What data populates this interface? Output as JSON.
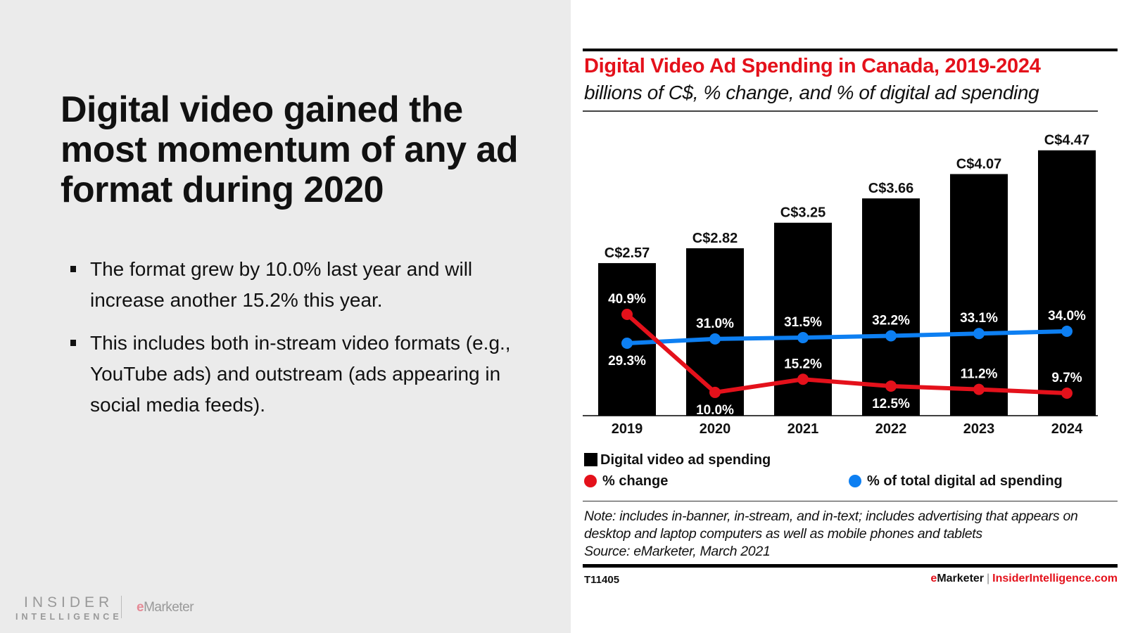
{
  "slide": {
    "title": "Digital video gained the most momentum of any ad format during 2020",
    "bullets": [
      "The format grew by 10.0% last year and will increase another 15.2% this year.",
      "This includes both in-stream video formats (e.g., YouTube ads) and outstream (ads appearing in social media feeds)."
    ],
    "logo": {
      "insider": "INSIDER",
      "intelligence": "INTELLIGENCE",
      "emarketer_e": "e",
      "emarketer_rest": "Marketer"
    }
  },
  "chart_data": {
    "type": "bar",
    "title": "Digital Video Ad Spending in Canada, 2019-2024",
    "subtitle": "billions of C$, % change, and % of digital ad spending",
    "categories": [
      "2019",
      "2020",
      "2021",
      "2022",
      "2023",
      "2024"
    ],
    "series": [
      {
        "name": "Digital video ad spending",
        "kind": "bar",
        "color": "#000000",
        "values": [
          2.57,
          2.82,
          3.25,
          3.66,
          4.07,
          4.47
        ],
        "labels": [
          "C$2.57",
          "C$2.82",
          "C$3.25",
          "C$3.66",
          "C$4.07",
          "C$4.47"
        ]
      },
      {
        "name": "% change",
        "kind": "line",
        "color": "#e4111b",
        "values": [
          40.9,
          10.0,
          15.2,
          12.5,
          11.2,
          9.7
        ],
        "labels": [
          "40.9%",
          "10.0%",
          "15.2%",
          "12.5%",
          "11.2%",
          "9.7%"
        ]
      },
      {
        "name": "% of total digital ad spending",
        "kind": "line",
        "color": "#0d7ff2",
        "values": [
          29.3,
          31.0,
          31.5,
          32.2,
          33.1,
          34.0
        ],
        "labels": [
          "29.3%",
          "31.0%",
          "31.5%",
          "32.2%",
          "33.1%",
          "34.0%"
        ]
      }
    ],
    "xlabel": "",
    "ylabel": "",
    "ylim": [
      0,
      5
    ],
    "grid": false,
    "legend": "bottom-left",
    "legend_labels": {
      "bars": "Digital video ad spending",
      "change": "% change",
      "share": "% of total digital ad spending"
    },
    "note": "Note: includes in-banner, in-stream, and in-text; includes advertising that appears on desktop and laptop computers as well as mobile phones and tablets",
    "source": "Source: eMarketer, March 2021",
    "chart_id": "T11405",
    "credit": {
      "e": "e",
      "marketer": "Marketer",
      "separator": "|",
      "site": "InsiderIntelligence.com"
    }
  }
}
